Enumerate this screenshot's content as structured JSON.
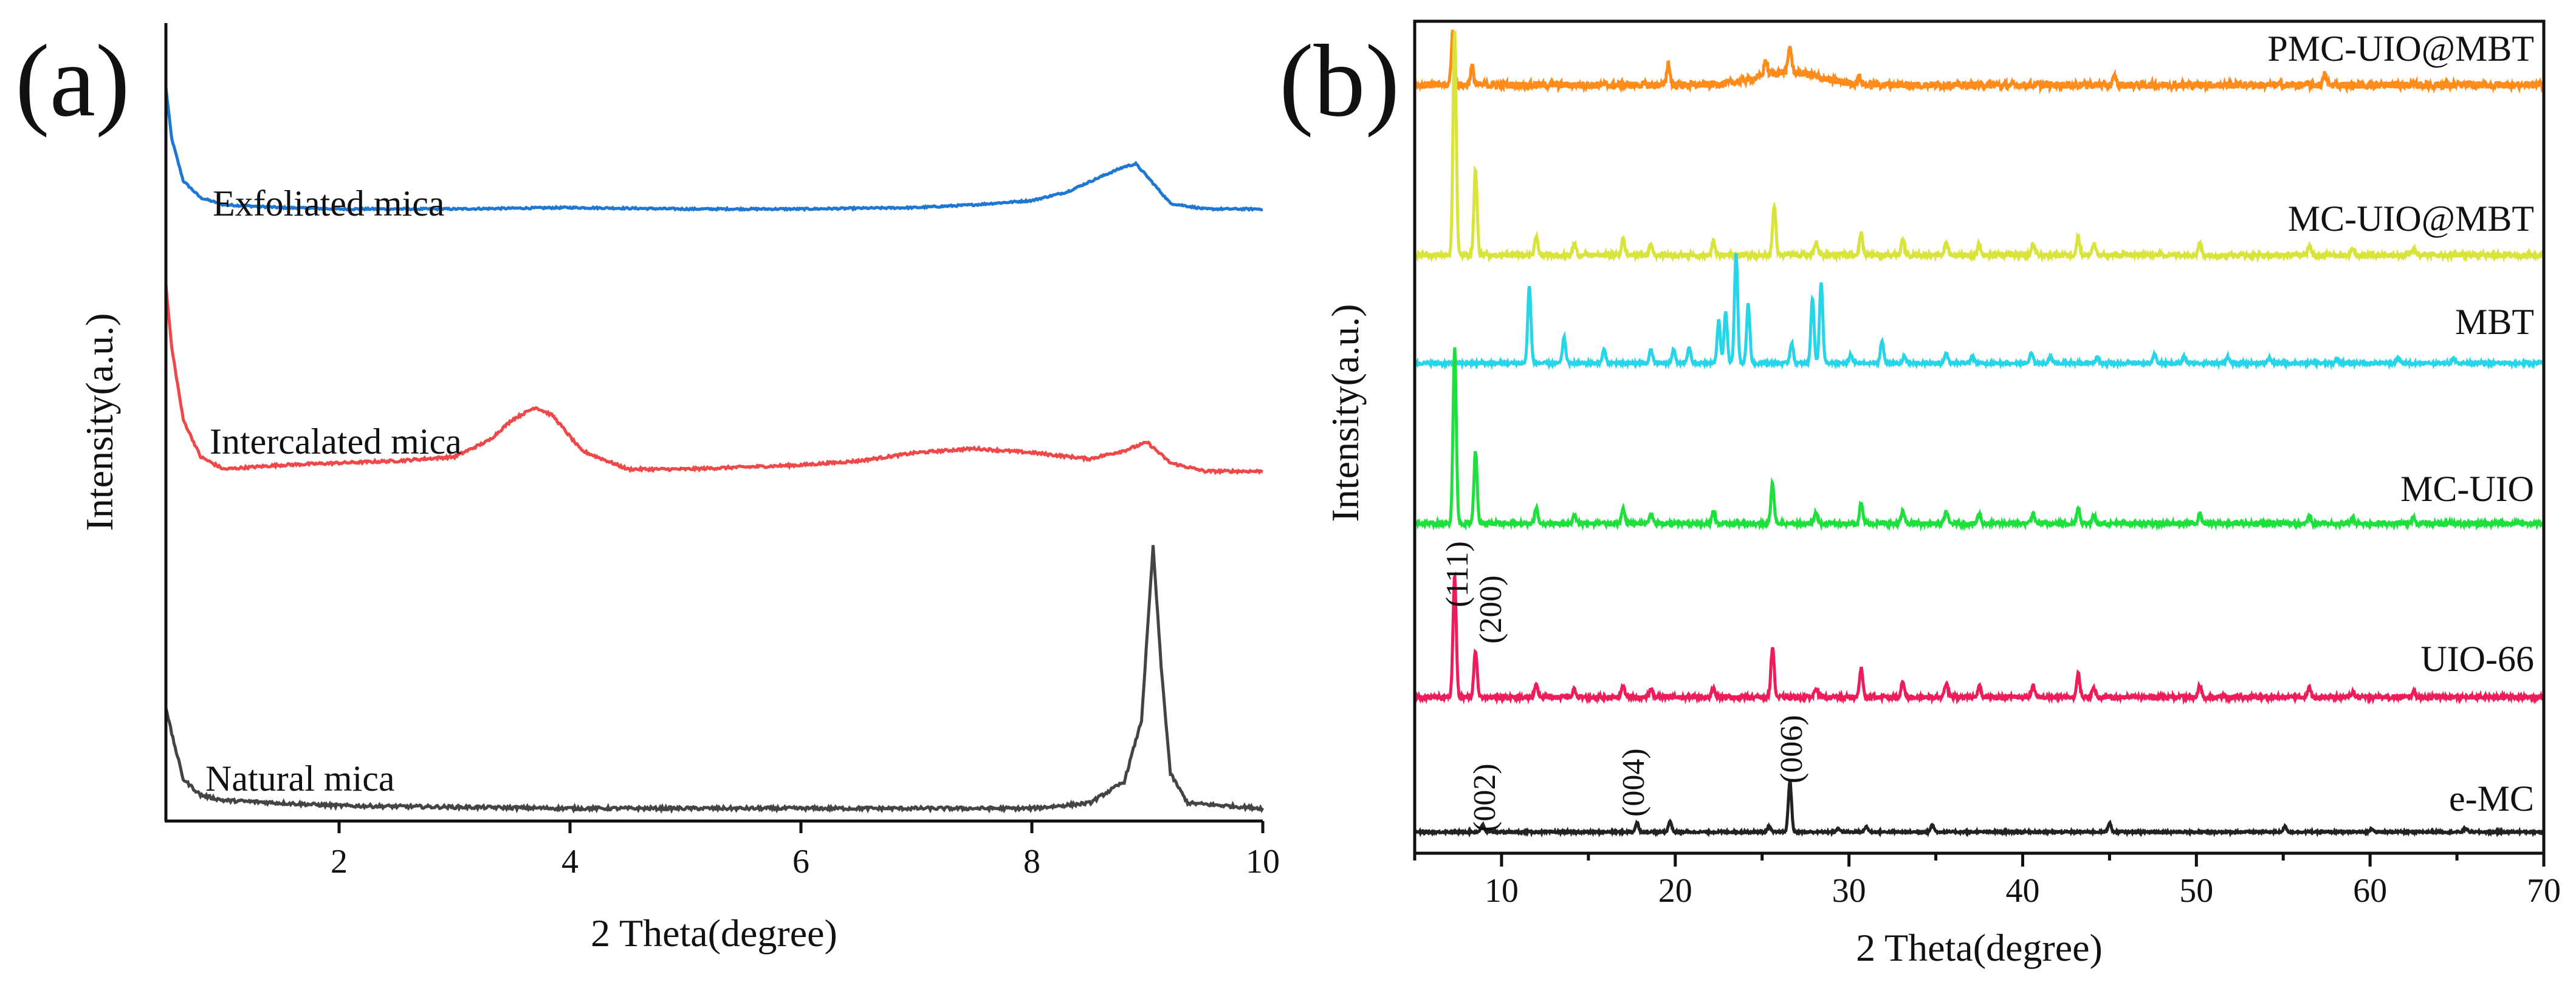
{
  "figure": {
    "background": "#ffffff"
  },
  "chart_data": [
    {
      "panel": "(a)",
      "type": "line",
      "xlabel": "2 Theta(degree)",
      "ylabel": "Intensity(a.u.)",
      "xlim": [
        0.5,
        10
      ],
      "xticks": [
        2,
        4,
        6,
        8,
        10
      ],
      "grid": false,
      "series": [
        {
          "name": "Exfoliated mica",
          "color": "#1f77d4",
          "baseline": 0.12,
          "points": [
            [
              0.5,
              0.98
            ],
            [
              0.55,
              0.62
            ],
            [
              0.65,
              0.32
            ],
            [
              0.8,
              0.2
            ],
            [
              1.0,
              0.15
            ],
            [
              1.5,
              0.13
            ],
            [
              2.0,
              0.12
            ],
            [
              3.0,
              0.12
            ],
            [
              4.0,
              0.13
            ],
            [
              5.0,
              0.12
            ],
            [
              6.0,
              0.12
            ],
            [
              7.0,
              0.13
            ],
            [
              7.5,
              0.15
            ],
            [
              8.0,
              0.18
            ],
            [
              8.3,
              0.24
            ],
            [
              8.6,
              0.35
            ],
            [
              8.8,
              0.42
            ],
            [
              8.9,
              0.44
            ],
            [
              9.0,
              0.35
            ],
            [
              9.2,
              0.16
            ],
            [
              9.5,
              0.12
            ],
            [
              10.0,
              0.12
            ]
          ]
        },
        {
          "name": "Intercalated mica",
          "color": "#f04848",
          "baseline": 0.1,
          "points": [
            [
              0.5,
              1.0
            ],
            [
              0.55,
              0.7
            ],
            [
              0.65,
              0.35
            ],
            [
              0.8,
              0.17
            ],
            [
              1.0,
              0.11
            ],
            [
              1.5,
              0.13
            ],
            [
              2.0,
              0.14
            ],
            [
              2.5,
              0.15
            ],
            [
              3.0,
              0.17
            ],
            [
              3.3,
              0.25
            ],
            [
              3.5,
              0.35
            ],
            [
              3.7,
              0.41
            ],
            [
              3.85,
              0.37
            ],
            [
              4.1,
              0.2
            ],
            [
              4.5,
              0.11
            ],
            [
              5.0,
              0.11
            ],
            [
              5.5,
              0.12
            ],
            [
              6.0,
              0.13
            ],
            [
              6.5,
              0.15
            ],
            [
              7.0,
              0.19
            ],
            [
              7.5,
              0.21
            ],
            [
              8.0,
              0.19
            ],
            [
              8.5,
              0.16
            ],
            [
              8.8,
              0.2
            ],
            [
              9.0,
              0.24
            ],
            [
              9.2,
              0.14
            ],
            [
              9.5,
              0.1
            ],
            [
              10.0,
              0.1
            ]
          ]
        },
        {
          "name": "Natural mica",
          "color": "#444444",
          "baseline": 0.02,
          "points": [
            [
              0.5,
              0.4
            ],
            [
              0.55,
              0.3
            ],
            [
              0.65,
              0.13
            ],
            [
              0.8,
              0.07
            ],
            [
              1.0,
              0.05
            ],
            [
              2.0,
              0.03
            ],
            [
              4.0,
              0.02
            ],
            [
              6.0,
              0.02
            ],
            [
              8.0,
              0.02
            ],
            [
              8.5,
              0.04
            ],
            [
              8.8,
              0.12
            ],
            [
              8.95,
              0.35
            ],
            [
              9.05,
              1.0
            ],
            [
              9.12,
              0.55
            ],
            [
              9.2,
              0.15
            ],
            [
              9.35,
              0.04
            ],
            [
              10.0,
              0.02
            ]
          ]
        }
      ]
    },
    {
      "panel": "(b)",
      "type": "line",
      "xlabel": "2 Theta(degree)",
      "ylabel": "Intensity(a.u.)",
      "xlim": [
        5,
        70
      ],
      "xticks": [
        10,
        20,
        30,
        40,
        50,
        60,
        70
      ],
      "grid": false,
      "annotations": [
        {
          "text": "(111)",
          "x": 7.3,
          "series": "UIO-66"
        },
        {
          "text": "(200)",
          "x": 8.5,
          "series": "UIO-66"
        },
        {
          "text": "(002)",
          "x": 8.9,
          "series": "e-MC"
        },
        {
          "text": "(004)",
          "x": 17.8,
          "series": "e-MC"
        },
        {
          "text": "(006)",
          "x": 26.6,
          "series": "e-MC"
        }
      ],
      "series": [
        {
          "name": "PMC-UIO@MBT",
          "color": "#ff8c1a",
          "peaks": [
            [
              7.2,
              0.75
            ],
            [
              8.3,
              0.25
            ],
            [
              19.6,
              0.3
            ],
            [
              25.2,
              0.2
            ],
            [
              26.6,
              0.35
            ],
            [
              30.6,
              0.1
            ],
            [
              45.3,
              0.12
            ],
            [
              57.4,
              0.15
            ]
          ],
          "broad_humps": [
            [
              26.5,
              0.18,
              2.5
            ]
          ],
          "noise": 0.05
        },
        {
          "name": "MC-UIO@MBT",
          "color": "#d8e43a",
          "peaks": [
            [
              7.3,
              1.0
            ],
            [
              8.5,
              0.38
            ],
            [
              12.0,
              0.08
            ],
            [
              14.2,
              0.05
            ],
            [
              17.0,
              0.07
            ],
            [
              18.6,
              0.05
            ],
            [
              22.2,
              0.06
            ],
            [
              25.7,
              0.22
            ],
            [
              28.1,
              0.06
            ],
            [
              30.7,
              0.1
            ],
            [
              33.1,
              0.07
            ],
            [
              35.6,
              0.06
            ],
            [
              37.5,
              0.05
            ],
            [
              40.6,
              0.05
            ],
            [
              43.2,
              0.08
            ],
            [
              44.1,
              0.05
            ],
            [
              50.2,
              0.05
            ],
            [
              56.5,
              0.04
            ],
            [
              59.0,
              0.03
            ],
            [
              62.5,
              0.03
            ]
          ],
          "noise": 0.01
        },
        {
          "name": "MBT",
          "color": "#26d6e8",
          "peaks": [
            [
              11.6,
              0.45
            ],
            [
              13.6,
              0.15
            ],
            [
              15.9,
              0.08
            ],
            [
              18.6,
              0.08
            ],
            [
              19.9,
              0.08
            ],
            [
              20.8,
              0.09
            ],
            [
              22.5,
              0.25
            ],
            [
              22.9,
              0.3
            ],
            [
              23.5,
              0.65
            ],
            [
              24.2,
              0.35
            ],
            [
              26.7,
              0.12
            ],
            [
              27.9,
              0.38
            ],
            [
              28.4,
              0.48
            ],
            [
              30.1,
              0.05
            ],
            [
              31.9,
              0.13
            ],
            [
              33.2,
              0.04
            ],
            [
              35.6,
              0.06
            ],
            [
              37.1,
              0.04
            ],
            [
              40.5,
              0.06
            ],
            [
              41.6,
              0.04
            ],
            [
              44.3,
              0.04
            ],
            [
              47.6,
              0.05
            ],
            [
              49.3,
              0.04
            ],
            [
              51.8,
              0.04
            ],
            [
              54.2,
              0.03
            ],
            [
              58.1,
              0.03
            ],
            [
              61.6,
              0.03
            ],
            [
              64.8,
              0.03
            ]
          ],
          "noise": 0.008
        },
        {
          "name": "MC-UIO",
          "color": "#1ee03c",
          "peaks": [
            [
              7.3,
              0.88
            ],
            [
              8.5,
              0.36
            ],
            [
              12.0,
              0.08
            ],
            [
              14.2,
              0.04
            ],
            [
              17.0,
              0.07
            ],
            [
              18.6,
              0.05
            ],
            [
              22.2,
              0.06
            ],
            [
              25.6,
              0.2
            ],
            [
              28.1,
              0.05
            ],
            [
              30.7,
              0.1
            ],
            [
              33.1,
              0.06
            ],
            [
              35.6,
              0.06
            ],
            [
              37.5,
              0.05
            ],
            [
              40.6,
              0.05
            ],
            [
              43.2,
              0.08
            ],
            [
              44.1,
              0.04
            ],
            [
              50.2,
              0.05
            ],
            [
              56.5,
              0.04
            ],
            [
              59.0,
              0.03
            ],
            [
              62.5,
              0.03
            ]
          ],
          "noise": 0.01
        },
        {
          "name": "UIO-66",
          "color": "#ee1c58",
          "peaks": [
            [
              7.3,
              0.62
            ],
            [
              8.5,
              0.24
            ],
            [
              12.0,
              0.06
            ],
            [
              14.2,
              0.04
            ],
            [
              17.0,
              0.06
            ],
            [
              18.6,
              0.04
            ],
            [
              22.2,
              0.05
            ],
            [
              25.6,
              0.26
            ],
            [
              28.1,
              0.05
            ],
            [
              30.7,
              0.15
            ],
            [
              33.1,
              0.08
            ],
            [
              35.6,
              0.07
            ],
            [
              37.5,
              0.06
            ],
            [
              40.6,
              0.06
            ],
            [
              43.2,
              0.12
            ],
            [
              44.1,
              0.05
            ],
            [
              50.2,
              0.06
            ],
            [
              56.5,
              0.05
            ],
            [
              59.0,
              0.03
            ],
            [
              62.5,
              0.03
            ]
          ],
          "noise": 0.01
        },
        {
          "name": "e-MC",
          "color": "#222222",
          "peaks": [
            [
              8.9,
              0.04
            ],
            [
              17.8,
              0.05
            ],
            [
              19.7,
              0.06
            ],
            [
              26.6,
              0.28
            ],
            [
              25.4,
              0.03
            ],
            [
              29.4,
              0.02
            ],
            [
              31.0,
              0.03
            ],
            [
              34.8,
              0.04
            ],
            [
              45.0,
              0.05
            ],
            [
              55.1,
              0.03
            ],
            [
              60.1,
              0.02
            ],
            [
              65.5,
              0.02
            ]
          ],
          "noise": 0.005
        }
      ]
    }
  ]
}
